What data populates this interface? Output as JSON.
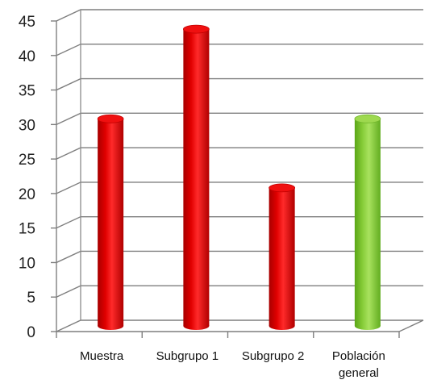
{
  "chart_data": {
    "type": "bar",
    "categories": [
      [
        "Muestra"
      ],
      [
        "Subgrupo 1"
      ],
      [
        "Subgrupo 2"
      ],
      [
        "Población",
        "general"
      ]
    ],
    "values": [
      30,
      43,
      20,
      30
    ],
    "ylim": [
      0,
      45
    ],
    "yticks": [
      0,
      5,
      10,
      15,
      20,
      25,
      30,
      35,
      40,
      45
    ],
    "grid": true,
    "colors": [
      "#e60000",
      "#e60000",
      "#e60000",
      "#8fd63c"
    ]
  }
}
